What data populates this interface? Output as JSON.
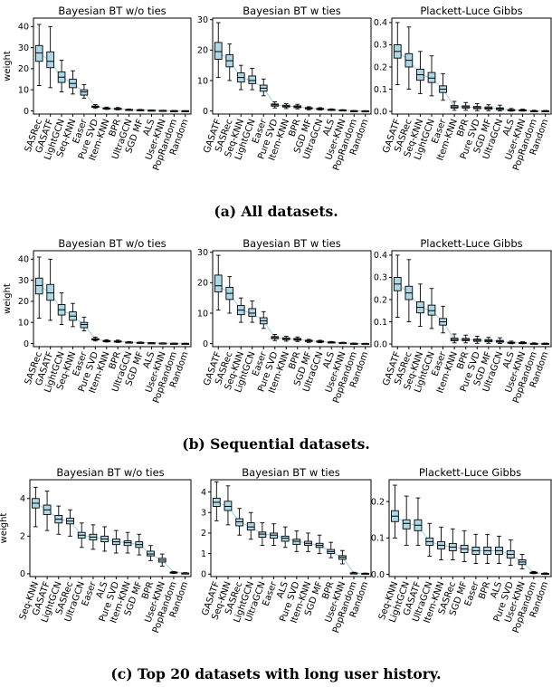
{
  "section_captions": [
    "(a) All datasets.",
    "(b) Sequential datasets.",
    "(c) Top 20 datasets with long user history."
  ],
  "box_color": "#add8e6",
  "connector_color": "#9fd0e6",
  "chart_data": [
    {
      "type": "box",
      "section": "a",
      "title": "Bayesian BT w/o ties",
      "ylabel": "weight",
      "yticks": [
        0,
        10,
        20,
        30,
        40
      ],
      "ylim": [
        -1.5,
        44
      ],
      "categories": [
        "SASRec",
        "GASATF",
        "LightGCN",
        "Seq-KNN",
        "Easer",
        "Pure SVD",
        "Item-KNN",
        "BPR",
        "UltraGCN",
        "SGD MF",
        "ALS",
        "User-KNN",
        "PopRandom",
        "Random"
      ],
      "boxes": [
        [
          12,
          23.5,
          27.5,
          31,
          41
        ],
        [
          11,
          20.5,
          23.5,
          28,
          40
        ],
        [
          9,
          13.5,
          16,
          18.5,
          24
        ],
        [
          8,
          11,
          13,
          15,
          19
        ],
        [
          6,
          7.5,
          9,
          10,
          12.5
        ],
        [
          1.2,
          1.7,
          2,
          2.3,
          3
        ],
        [
          0.7,
          1,
          1.2,
          1.4,
          1.8
        ],
        [
          0.5,
          0.8,
          1,
          1.2,
          1.6
        ],
        [
          0.3,
          0.5,
          0.6,
          0.7,
          0.9
        ],
        [
          0.2,
          0.35,
          0.45,
          0.55,
          0.7
        ],
        [
          0.1,
          0.25,
          0.3,
          0.35,
          0.45
        ],
        [
          0.05,
          0.15,
          0.2,
          0.25,
          0.3
        ],
        [
          0,
          0.05,
          0.08,
          0.1,
          0.15
        ],
        [
          0,
          0.02,
          0.04,
          0.06,
          0.1
        ]
      ]
    },
    {
      "type": "box",
      "section": "a",
      "title": "Bayesian BT w ties",
      "ylabel": "",
      "yticks": [
        0,
        10,
        20,
        30
      ],
      "ylim": [
        -1,
        30.5
      ],
      "categories": [
        "GASATF",
        "SASRec",
        "Seq-KNN",
        "LightGCN",
        "Easer",
        "Pure SVD",
        "Item-KNN",
        "BPR",
        "SGD MF",
        "UltraGCN",
        "ALS",
        "User-KNN",
        "PopRandom",
        "Random"
      ],
      "boxes": [
        [
          11,
          17,
          19.5,
          22.5,
          29
        ],
        [
          10,
          14.5,
          16.5,
          18.5,
          22
        ],
        [
          7,
          9.5,
          11,
          12.5,
          15
        ],
        [
          7,
          9,
          10,
          11.5,
          14
        ],
        [
          5,
          6.5,
          7.5,
          8.5,
          10.5
        ],
        [
          1,
          1.6,
          2,
          2.3,
          3
        ],
        [
          0.8,
          1.3,
          1.6,
          1.9,
          2.4
        ],
        [
          0.7,
          1.1,
          1.4,
          1.7,
          2.2
        ],
        [
          0.4,
          0.7,
          0.9,
          1.1,
          1.4
        ],
        [
          0.3,
          0.55,
          0.7,
          0.85,
          1.1
        ],
        [
          0.2,
          0.35,
          0.45,
          0.55,
          0.7
        ],
        [
          0.1,
          0.2,
          0.3,
          0.35,
          0.45
        ],
        [
          0,
          0.05,
          0.08,
          0.1,
          0.15
        ],
        [
          0,
          0.02,
          0.04,
          0.06,
          0.1
        ]
      ]
    },
    {
      "type": "box",
      "section": "a",
      "title": "Plackett-Luce Gibbs",
      "ylabel": "",
      "yticks": [
        0.0,
        0.1,
        0.2,
        0.3,
        0.4
      ],
      "ylim": [
        -0.012,
        0.42
      ],
      "categories": [
        "GASATF",
        "SASRec",
        "Seq-KNN",
        "LightGCN",
        "Easer",
        "Item-KNN",
        "BPR",
        "Pure SVD",
        "SGD MF",
        "UltraGCN",
        "ALS",
        "User-KNN",
        "PopRandom",
        "Random"
      ],
      "boxes": [
        [
          0.12,
          0.24,
          0.27,
          0.3,
          0.4
        ],
        [
          0.1,
          0.2,
          0.23,
          0.26,
          0.38
        ],
        [
          0.08,
          0.14,
          0.165,
          0.19,
          0.27
        ],
        [
          0.07,
          0.13,
          0.15,
          0.175,
          0.25
        ],
        [
          0.05,
          0.085,
          0.1,
          0.115,
          0.17
        ],
        [
          0.005,
          0.015,
          0.02,
          0.026,
          0.045
        ],
        [
          0.005,
          0.015,
          0.02,
          0.025,
          0.04
        ],
        [
          0.003,
          0.012,
          0.017,
          0.022,
          0.035
        ],
        [
          0.003,
          0.01,
          0.015,
          0.02,
          0.03
        ],
        [
          0.002,
          0.008,
          0.012,
          0.016,
          0.028
        ],
        [
          0.001,
          0.004,
          0.006,
          0.008,
          0.013
        ],
        [
          0.001,
          0.003,
          0.005,
          0.007,
          0.01
        ],
        [
          0,
          0.001,
          0.002,
          0.003,
          0.005
        ],
        [
          0,
          0.001,
          0.002,
          0.003,
          0.004
        ]
      ]
    },
    {
      "type": "box",
      "section": "b",
      "title": "Bayesian BT w/o ties",
      "ylabel": "weight",
      "yticks": [
        0,
        10,
        20,
        30,
        40
      ],
      "ylim": [
        -1.5,
        44
      ],
      "categories": [
        "SASRec",
        "GASATF",
        "LightGCN",
        "Seq-KNN",
        "Easer",
        "Pure SVD",
        "Item-KNN",
        "BPR",
        "UltraGCN",
        "SGD MF",
        "ALS",
        "User-KNN",
        "PopRandom",
        "Random"
      ],
      "boxes": [
        [
          12,
          23.5,
          27.5,
          31,
          41
        ],
        [
          11,
          20.5,
          24,
          28,
          40
        ],
        [
          9,
          13.5,
          16,
          18.5,
          24
        ],
        [
          8,
          11,
          13,
          15,
          19
        ],
        [
          6,
          7.5,
          9,
          10,
          12.5
        ],
        [
          1.2,
          1.7,
          2,
          2.3,
          3
        ],
        [
          0.7,
          1,
          1.2,
          1.4,
          1.8
        ],
        [
          0.5,
          0.8,
          1,
          1.2,
          1.6
        ],
        [
          0.3,
          0.5,
          0.6,
          0.7,
          0.9
        ],
        [
          0.2,
          0.35,
          0.45,
          0.55,
          0.7
        ],
        [
          0.1,
          0.25,
          0.3,
          0.35,
          0.45
        ],
        [
          0.05,
          0.15,
          0.2,
          0.25,
          0.3
        ],
        [
          0,
          0.05,
          0.08,
          0.1,
          0.15
        ],
        [
          0,
          0.02,
          0.04,
          0.06,
          0.1
        ]
      ]
    },
    {
      "type": "box",
      "section": "b",
      "title": "Bayesian BT w ties",
      "ylabel": "",
      "yticks": [
        0,
        10,
        20,
        30
      ],
      "ylim": [
        -1,
        30.5
      ],
      "categories": [
        "GASATF",
        "SASRec",
        "Seq-KNN",
        "LightGCN",
        "Easer",
        "Pure SVD",
        "Item-KNN",
        "BPR",
        "SGD MF",
        "UltraGCN",
        "ALS",
        "User-KNN",
        "PopRandom",
        "Random"
      ],
      "boxes": [
        [
          11,
          17,
          19,
          22.5,
          29
        ],
        [
          10,
          14.5,
          16.5,
          18.5,
          22
        ],
        [
          7,
          9.5,
          11,
          12.5,
          15
        ],
        [
          7,
          9,
          10,
          11.5,
          14
        ],
        [
          5,
          6.5,
          7.5,
          8.5,
          10.5
        ],
        [
          1,
          1.6,
          2,
          2.3,
          3
        ],
        [
          0.8,
          1.3,
          1.6,
          1.9,
          2.4
        ],
        [
          0.7,
          1.1,
          1.4,
          1.7,
          2.2
        ],
        [
          0.4,
          0.7,
          0.9,
          1.1,
          1.4
        ],
        [
          0.3,
          0.55,
          0.7,
          0.85,
          1.1
        ],
        [
          0.2,
          0.35,
          0.45,
          0.55,
          0.7
        ],
        [
          0.1,
          0.2,
          0.3,
          0.35,
          0.45
        ],
        [
          0,
          0.05,
          0.08,
          0.1,
          0.15
        ],
        [
          0,
          0.02,
          0.04,
          0.06,
          0.1
        ]
      ]
    },
    {
      "type": "box",
      "section": "b",
      "title": "Plackett-Luce Gibbs",
      "ylabel": "",
      "yticks": [
        0.0,
        0.1,
        0.2,
        0.3,
        0.4
      ],
      "ylim": [
        -0.012,
        0.42
      ],
      "categories": [
        "GASATF",
        "SASRec",
        "Seq-KNN",
        "LightGCN",
        "Easer",
        "Item-KNN",
        "BPR",
        "Pure SVD",
        "SGD MF",
        "UltraGCN",
        "ALS",
        "User-KNN",
        "PopRandom",
        "Random"
      ],
      "boxes": [
        [
          0.12,
          0.24,
          0.27,
          0.3,
          0.4
        ],
        [
          0.1,
          0.2,
          0.23,
          0.26,
          0.38
        ],
        [
          0.08,
          0.14,
          0.165,
          0.19,
          0.27
        ],
        [
          0.07,
          0.13,
          0.15,
          0.175,
          0.25
        ],
        [
          0.05,
          0.085,
          0.1,
          0.115,
          0.17
        ],
        [
          0.005,
          0.015,
          0.02,
          0.026,
          0.045
        ],
        [
          0.005,
          0.015,
          0.02,
          0.025,
          0.04
        ],
        [
          0.003,
          0.012,
          0.017,
          0.022,
          0.035
        ],
        [
          0.003,
          0.01,
          0.015,
          0.02,
          0.03
        ],
        [
          0.002,
          0.008,
          0.012,
          0.016,
          0.028
        ],
        [
          0.001,
          0.004,
          0.006,
          0.008,
          0.013
        ],
        [
          0.001,
          0.003,
          0.005,
          0.007,
          0.01
        ],
        [
          0,
          0.001,
          0.002,
          0.003,
          0.005
        ],
        [
          0,
          0.001,
          0.002,
          0.003,
          0.004
        ]
      ]
    },
    {
      "type": "box",
      "section": "c",
      "title": "Bayesian BT w/o ties",
      "ylabel": "weight",
      "yticks": [
        0,
        2,
        4
      ],
      "ylim": [
        -0.15,
        5.0
      ],
      "categories": [
        "Seq-KNN",
        "GASATF",
        "LightGCN",
        "SASRec",
        "UltraGCN",
        "Easer",
        "ALS",
        "Pure SVD",
        "Item-KNN",
        "SGD MF",
        "BPR",
        "User-KNN",
        "PopRandom",
        "Random"
      ],
      "boxes": [
        [
          2.5,
          3.5,
          3.75,
          4,
          4.6
        ],
        [
          2.3,
          3.15,
          3.4,
          3.65,
          4.4
        ],
        [
          2.1,
          2.7,
          2.9,
          3.1,
          3.6
        ],
        [
          2,
          2.65,
          2.8,
          2.95,
          3.4
        ],
        [
          1.4,
          1.9,
          2.05,
          2.2,
          2.7
        ],
        [
          1.3,
          1.8,
          1.95,
          2.1,
          2.6
        ],
        [
          1.2,
          1.7,
          1.85,
          2,
          2.5
        ],
        [
          1.1,
          1.55,
          1.7,
          1.85,
          2.3
        ],
        [
          1.1,
          1.5,
          1.65,
          1.75,
          2.2
        ],
        [
          1,
          1.4,
          1.55,
          1.7,
          2.1
        ],
        [
          0.7,
          0.95,
          1.05,
          1.2,
          1.5
        ],
        [
          0.4,
          0.62,
          0.72,
          0.82,
          1.05
        ],
        [
          0.02,
          0.05,
          0.07,
          0.09,
          0.12
        ],
        [
          0,
          0.02,
          0.03,
          0.04,
          0.06
        ]
      ]
    },
    {
      "type": "box",
      "section": "c",
      "title": "Bayesian BT w ties",
      "ylabel": "",
      "yticks": [
        0,
        1,
        2,
        3,
        4
      ],
      "ylim": [
        -0.12,
        4.6
      ],
      "categories": [
        "GASATF",
        "Seq-KNN",
        "SASRec",
        "LightGCN",
        "UltraGCN",
        "Easer",
        "ALS",
        "Pure SVD",
        "Item-KNN",
        "SGD MF",
        "BPR",
        "User-KNN",
        "PopRandom",
        "Random"
      ],
      "boxes": [
        [
          2.6,
          3.3,
          3.5,
          3.7,
          4.5
        ],
        [
          2.4,
          3.1,
          3.3,
          3.55,
          4.3
        ],
        [
          1.9,
          2.35,
          2.55,
          2.7,
          3.2
        ],
        [
          1.7,
          2.15,
          2.3,
          2.5,
          3
        ],
        [
          1.4,
          1.8,
          1.95,
          2.05,
          2.5
        ],
        [
          1.4,
          1.75,
          1.9,
          2,
          2.45
        ],
        [
          1.3,
          1.6,
          1.75,
          1.85,
          2.3
        ],
        [
          1.1,
          1.45,
          1.6,
          1.7,
          2.1
        ],
        [
          1.1,
          1.4,
          1.5,
          1.6,
          2
        ],
        [
          1,
          1.3,
          1.4,
          1.5,
          1.9
        ],
        [
          0.8,
          1,
          1.1,
          1.2,
          1.55
        ],
        [
          0.5,
          0.72,
          0.82,
          0.9,
          1.15
        ],
        [
          0.02,
          0.04,
          0.05,
          0.06,
          0.09
        ],
        [
          0,
          0.02,
          0.03,
          0.04,
          0.05
        ]
      ]
    },
    {
      "type": "box",
      "section": "c",
      "title": "Plackett-Luce Gibbs",
      "ylabel": "",
      "yticks": [
        0.0,
        0.1,
        0.2
      ],
      "ylim": [
        -0.006,
        0.26
      ],
      "categories": [
        "Seq-KNN",
        "LightGCN",
        "GASATF",
        "UltraGCN",
        "Item-KNN",
        "SASRec",
        "SGD MF",
        "Easer",
        "BPR",
        "ALS",
        "Pure SVD",
        "User-KNN",
        "PopRandom",
        "Random"
      ],
      "boxes": [
        [
          0.1,
          0.145,
          0.16,
          0.175,
          0.245
        ],
        [
          0.08,
          0.125,
          0.14,
          0.15,
          0.215
        ],
        [
          0.08,
          0.12,
          0.135,
          0.15,
          0.21
        ],
        [
          0.05,
          0.08,
          0.09,
          0.1,
          0.14
        ],
        [
          0.04,
          0.07,
          0.08,
          0.09,
          0.13
        ],
        [
          0.04,
          0.065,
          0.075,
          0.085,
          0.125
        ],
        [
          0.035,
          0.06,
          0.07,
          0.08,
          0.12
        ],
        [
          0.03,
          0.055,
          0.065,
          0.075,
          0.11
        ],
        [
          0.03,
          0.055,
          0.065,
          0.075,
          0.11
        ],
        [
          0.03,
          0.055,
          0.065,
          0.075,
          0.105
        ],
        [
          0.025,
          0.045,
          0.055,
          0.065,
          0.095
        ],
        [
          0.015,
          0.027,
          0.034,
          0.04,
          0.055
        ],
        [
          0.002,
          0.004,
          0.005,
          0.006,
          0.008
        ],
        [
          0,
          0.001,
          0.002,
          0.003,
          0.004
        ]
      ]
    }
  ]
}
